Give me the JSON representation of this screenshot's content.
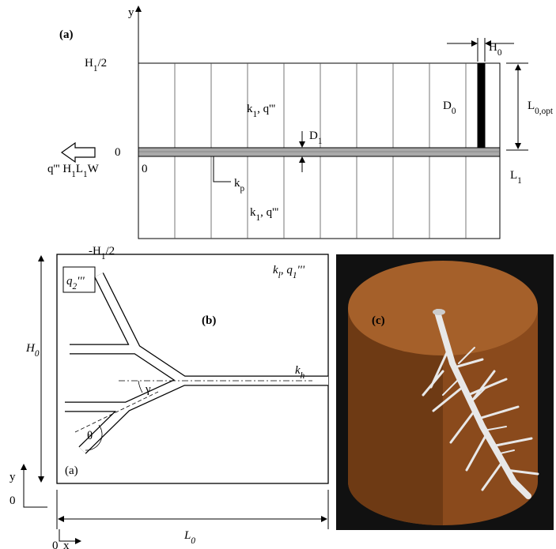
{
  "panel_a": {
    "label": "(a)",
    "y_axis": "y",
    "top": [
      "H",
      "1",
      "/2"
    ],
    "bottom": [
      "-H",
      "1",
      "/2"
    ],
    "zero_left": "0",
    "zero_axis": "0",
    "flux": [
      "q''' H",
      "1",
      "L",
      "1",
      "W"
    ],
    "k1_top": [
      "k",
      "1",
      ", q'''"
    ],
    "k1_bottom": [
      "k",
      "1",
      ", q'''"
    ],
    "kp": [
      "k",
      "p"
    ],
    "d1": [
      "D",
      "1"
    ],
    "d0": [
      "D",
      "0"
    ],
    "h0": [
      "H",
      "0"
    ],
    "l0opt": [
      "L",
      "0,opt"
    ],
    "l1": [
      "L",
      "1"
    ]
  },
  "panel_b": {
    "label": "(b)",
    "q2": [
      "q",
      "2",
      "'''"
    ],
    "kl": [
      "k",
      "l",
      ", q",
      "1",
      "'''"
    ],
    "h0": [
      "H",
      "0"
    ],
    "kh": [
      "k",
      "h"
    ],
    "gamma": "γ",
    "theta": "θ",
    "sub_label": "(a)",
    "y_axis": "y",
    "y_zero": "0",
    "x_zero": "0",
    "x_axis": "x",
    "l0": [
      "L",
      "0"
    ]
  },
  "panel_c": {
    "label": "(c)"
  }
}
